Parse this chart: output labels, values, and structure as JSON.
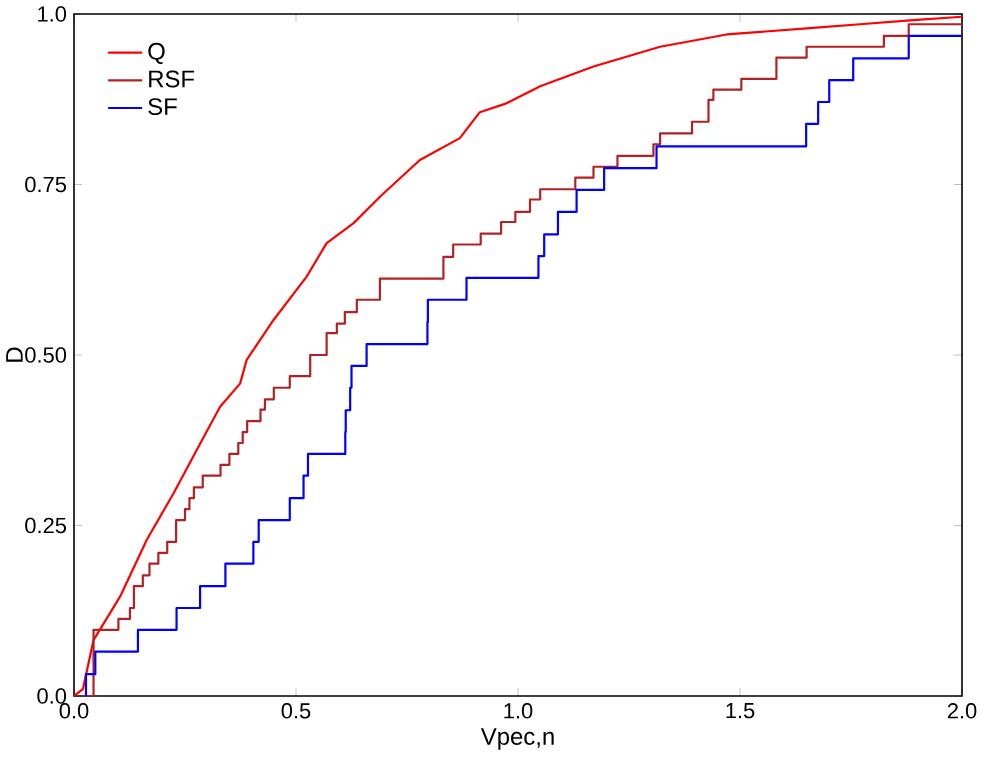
{
  "chart_data": {
    "type": "step",
    "xlabel": "Vpec,n",
    "ylabel": "D",
    "xlim": [
      0,
      2
    ],
    "ylim": [
      0,
      1
    ],
    "xticks": [
      {
        "value": 0,
        "label": "0.0"
      },
      0.5,
      {
        "value": 1,
        "label": "1.0"
      },
      1.5,
      {
        "value": 2,
        "label": "2.0"
      }
    ],
    "yticks": [
      {
        "value": 0,
        "label": "0.0"
      },
      0.25,
      {
        "value": 0.5,
        "label": "0.50"
      },
      0.75,
      {
        "value": 1,
        "label": "1.0"
      }
    ],
    "legend": "top left",
    "grid": false,
    "marker": "none",
    "line_style": "solid",
    "series": [
      {
        "name": "Q",
        "type": "line",
        "color": "#ff0000",
        "x": [
          0,
          0.02,
          0.044,
          0.104,
          0.164,
          0.224,
          0.284,
          0.329,
          0.374,
          0.389,
          0.449,
          0.524,
          0.569,
          0.629,
          0.689,
          0.779,
          0.869,
          0.914,
          0.974,
          1.05,
          1.17,
          1.32,
          1.47,
          1.65,
          1.77,
          1.89,
          2.0
        ],
        "values": [
          0,
          0.01,
          0.082,
          0.146,
          0.229,
          0.297,
          0.37,
          0.424,
          0.458,
          0.493,
          0.551,
          0.615,
          0.664,
          0.693,
          0.732,
          0.786,
          0.818,
          0.856,
          0.869,
          0.894,
          0.923,
          0.952,
          0.97,
          0.979,
          0.985,
          0.991,
          0.996
        ]
      },
      {
        "name": "RSF",
        "color": "#b22222",
        "x": [
          0.02,
          0.044,
          0.1,
          0.126,
          0.135,
          0.155,
          0.17,
          0.19,
          0.21,
          0.23,
          0.25,
          0.26,
          0.27,
          0.29,
          0.33,
          0.35,
          0.37,
          0.38,
          0.39,
          0.42,
          0.43,
          0.45,
          0.486,
          0.532,
          0.569,
          0.592,
          0.61,
          0.637,
          0.689,
          0.832,
          0.854,
          0.916,
          0.962,
          0.994,
          1.027,
          1.05,
          1.129,
          1.17,
          1.224,
          1.305,
          1.32,
          1.392,
          1.429,
          1.44,
          1.503,
          1.582,
          1.65,
          1.824,
          1.88,
          2.0
        ],
        "values": [
          0,
          0.097,
          0.113,
          0.129,
          0.161,
          0.177,
          0.194,
          0.21,
          0.226,
          0.258,
          0.274,
          0.29,
          0.306,
          0.323,
          0.339,
          0.355,
          0.371,
          0.387,
          0.403,
          0.42,
          0.435,
          0.452,
          0.469,
          0.5,
          0.532,
          0.546,
          0.563,
          0.581,
          0.612,
          0.644,
          0.662,
          0.678,
          0.695,
          0.71,
          0.728,
          0.743,
          0.76,
          0.776,
          0.792,
          0.809,
          0.825,
          0.842,
          0.874,
          0.889,
          0.905,
          0.936,
          0.952,
          0.968,
          0.985,
          0.985
        ]
      },
      {
        "name": "SF",
        "color": "#0000ff",
        "x": [
          0.027,
          0.027,
          0.048,
          0.144,
          0.231,
          0.284,
          0.341,
          0.404,
          0.416,
          0.486,
          0.517,
          0.527,
          0.611,
          0.612,
          0.622,
          0.625,
          0.659,
          0.796,
          0.797,
          0.884,
          1.046,
          1.059,
          1.09,
          1.132,
          1.194,
          1.312,
          1.649,
          1.676,
          1.701,
          1.755,
          1.88,
          2.0
        ],
        "values": [
          0,
          0.032,
          0.065,
          0.097,
          0.129,
          0.161,
          0.194,
          0.226,
          0.258,
          0.29,
          0.323,
          0.355,
          0.387,
          0.419,
          0.452,
          0.484,
          0.516,
          0.548,
          0.581,
          0.613,
          0.645,
          0.677,
          0.71,
          0.742,
          0.774,
          0.806,
          0.839,
          0.871,
          0.903,
          0.935,
          0.968,
          0.968
        ]
      }
    ]
  }
}
